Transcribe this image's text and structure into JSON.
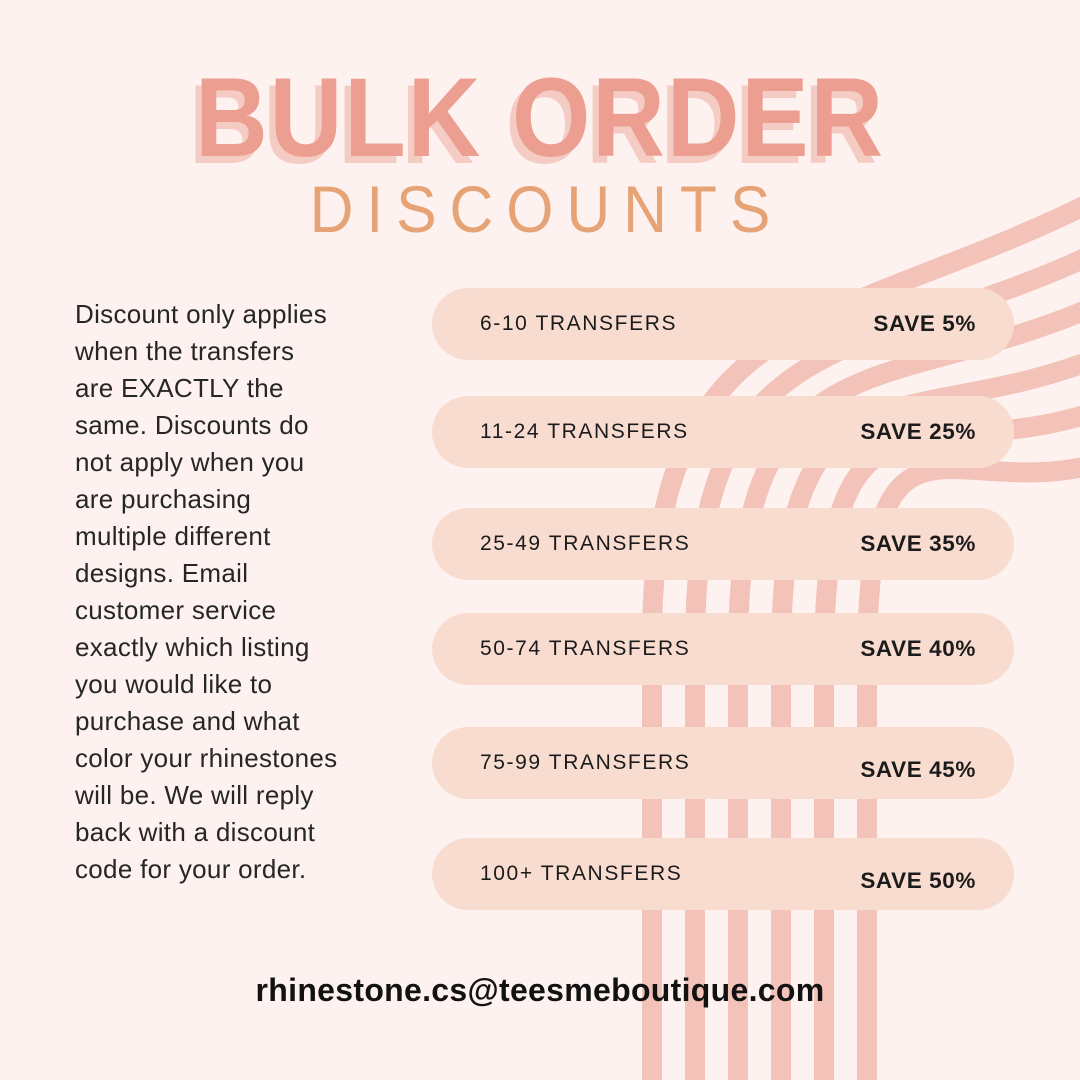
{
  "title": {
    "line1": "BULK ORDER",
    "line2": "DISCOUNTS"
  },
  "description": "Discount only applies\nwhen the transfers\nare EXACTLY the\nsame. Discounts do\nnot apply when you\nare purchasing\nmultiple different\ndesigns. Email\ncustomer service\nexactly which listing\nyou would like to\npurchase and what\ncolor your rhinestones\nwill be. We will reply\nback with a discount\ncode for your order.",
  "tiers": [
    {
      "range": "6-10 TRANSFERS",
      "save": "SAVE 5%"
    },
    {
      "range": "11-24 TRANSFERS",
      "save": "SAVE 25%"
    },
    {
      "range": "25-49 TRANSFERS",
      "save": "SAVE 35%"
    },
    {
      "range": "50-74 TRANSFERS",
      "save": "SAVE 40%"
    },
    {
      "range": "75-99 TRANSFERS",
      "save": "SAVE 45%"
    },
    {
      "range": "100+ TRANSFERS",
      "save": "SAVE 50%"
    }
  ],
  "contact_email": "rhinestone.cs@teesmeboutique.com",
  "theme": {
    "background": "#fdf2f0",
    "stripe": "#f3c2b8",
    "pill": "#f9dcd0",
    "title_color": "#ec9e90",
    "title_shadow": "#f5ccc3",
    "subtitle_color": "#e6a476",
    "text_color": "#262626",
    "pill_text": "#1b1b1b",
    "email_color": "#121212"
  }
}
